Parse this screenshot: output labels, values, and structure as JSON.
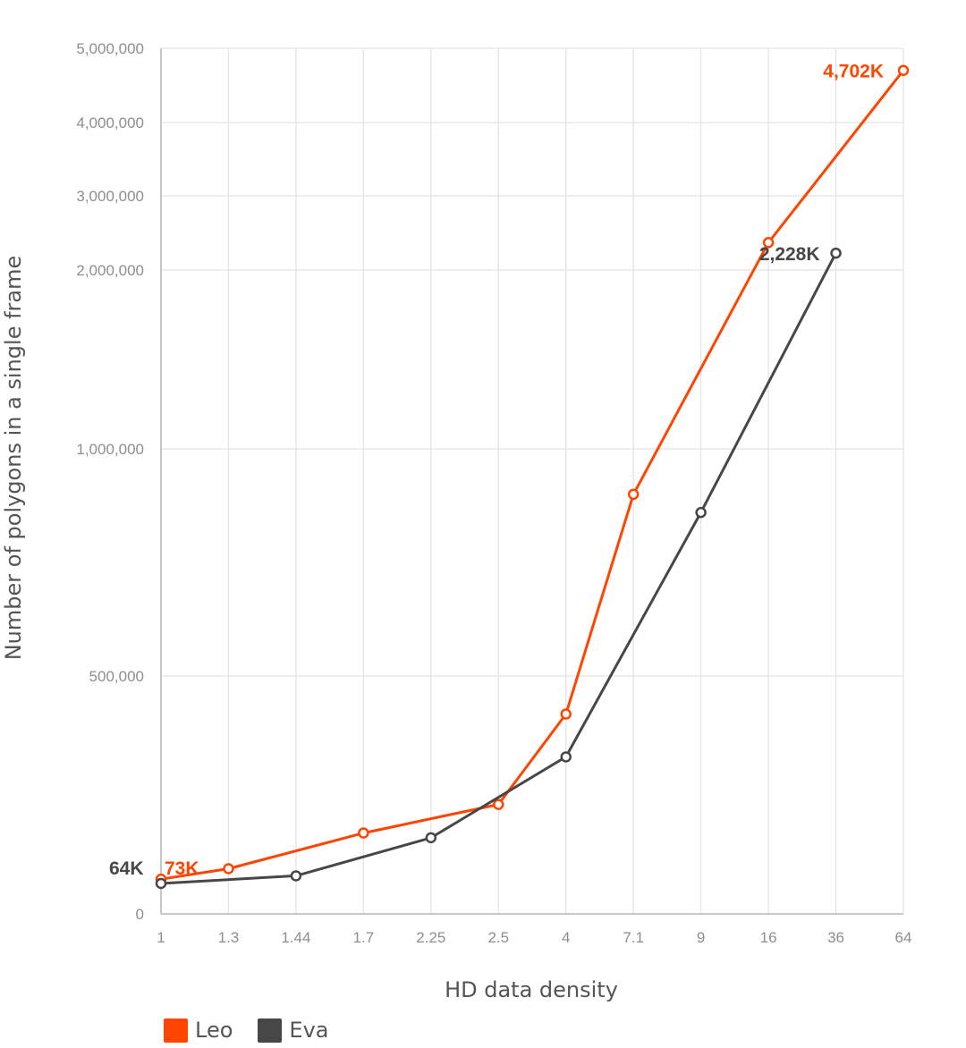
{
  "chart_data": {
    "type": "line",
    "title": "",
    "xlabel": "HD data density",
    "ylabel": "Number of polygons in a single frame",
    "categories": [
      "1",
      "1.3",
      "1.44",
      "1.7",
      "2.25",
      "2.5",
      "4",
      "7.1",
      "9",
      "16",
      "36",
      "64"
    ],
    "yticks": [
      {
        "value": 0,
        "label": "0"
      },
      {
        "value": 500000,
        "label": "500,000"
      },
      {
        "value": 1000000,
        "label": "1,000,000"
      },
      {
        "value": 2000000,
        "label": "2,000,000"
      },
      {
        "value": 3000000,
        "label": "3,000,000"
      },
      {
        "value": 4000000,
        "label": "4,000,000"
      },
      {
        "value": 5000000,
        "label": "5,000,000"
      }
    ],
    "ylim": [
      0,
      5000000
    ],
    "grid": true,
    "legend_position": "bottom-left",
    "series": [
      {
        "name": "Leo",
        "color": "#ff4500",
        "values": [
          73000,
          95000,
          null,
          170000,
          null,
          230000,
          420000,
          900000,
          null,
          2370000,
          null,
          4702000
        ],
        "start_label": "73K",
        "end_label": "4,702K"
      },
      {
        "name": "Eva",
        "color": "#474747",
        "values": [
          64000,
          null,
          80000,
          null,
          160000,
          null,
          330000,
          null,
          860000,
          null,
          2228000,
          null
        ],
        "start_label": "64K",
        "end_label": "2,228K"
      }
    ]
  },
  "legend": {
    "items": [
      {
        "label": "Leo",
        "color": "#ff4500"
      },
      {
        "label": "Eva",
        "color": "#474747"
      }
    ]
  }
}
